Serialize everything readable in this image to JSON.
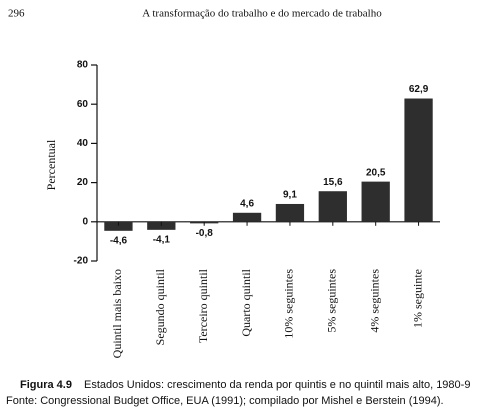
{
  "page_number": "296",
  "running_title": "A transformação do trabalho e do mercado de trabalho",
  "chart_data": {
    "type": "bar",
    "y_label": "Percentual",
    "categories": [
      "Quintil mais baixo",
      "Segundo quintil",
      "Terceiro quintil",
      "Quarto quintil",
      "10% seguintes",
      "5% seguintes",
      "4% seguintes",
      "1% seguinte"
    ],
    "values": [
      -4.6,
      -4.1,
      -0.8,
      4.6,
      9.1,
      15.6,
      20.5,
      62.9
    ],
    "value_labels": [
      "-4,6",
      "-4,1",
      "-0,8",
      "4,6",
      "9,1",
      "15,6",
      "20,5",
      "62,9"
    ],
    "color": "#2e2e2e",
    "ylim": [
      -20,
      80
    ],
    "yticks": [
      -20,
      0,
      20,
      40,
      60,
      80
    ]
  },
  "caption": {
    "label": "Figura 4.9",
    "text": "Estados Unidos: crescimento da renda por quintis e no quintil mais alto, 1980-9",
    "source": "Fonte: Congressional Budget Office, EUA (1991); compilado por Mishel e Berstein (1994)."
  }
}
